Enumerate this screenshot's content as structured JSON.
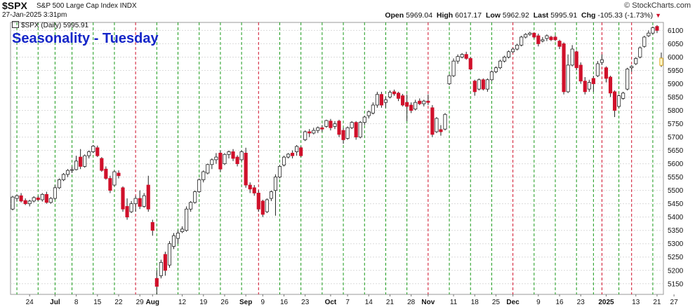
{
  "header": {
    "symbol": "$SPX",
    "description": "S&P 500 Large Cap Index  INDX",
    "date": "27-Jan-2025 3:31pm",
    "brand": "© StockCharts.com",
    "open_label": "Open",
    "open": "5969.04",
    "high_label": "High",
    "high": "6017.17",
    "low_label": "Low",
    "low": "5962.92",
    "last_label": "Last",
    "last": "5995.91",
    "chg_label": "Chg",
    "chg": "-105.33 (-1.73%)",
    "chg_arrow": "▼"
  },
  "legend": {
    "label": "$SPX (Daily) 5995.91"
  },
  "overlay_title": "Seasonality - Tuesday",
  "colors": {
    "up": "#ffffff",
    "down": "#d0102a",
    "title": "#1526c8",
    "green_line": "#1a9a1a",
    "red_line": "#d0102a"
  },
  "chart_data": {
    "type": "candlestick",
    "title": "Seasonality - Tuesday",
    "ylim": [
      5110,
      6130
    ],
    "y_ticks": [
      5150,
      5200,
      5250,
      5300,
      5350,
      5400,
      5450,
      5500,
      5550,
      5600,
      5650,
      5700,
      5750,
      5800,
      5850,
      5900,
      5950,
      6000,
      6050,
      6100
    ],
    "x_ticks": [
      {
        "label": "24",
        "i": 4
      },
      {
        "label": "Jul",
        "i": 10
      },
      {
        "label": "8",
        "i": 15
      },
      {
        "label": "15",
        "i": 20
      },
      {
        "label": "22",
        "i": 25
      },
      {
        "label": "29",
        "i": 30
      },
      {
        "label": "Aug",
        "i": 33
      },
      {
        "label": "12",
        "i": 40
      },
      {
        "label": "19",
        "i": 45
      },
      {
        "label": "26",
        "i": 50
      },
      {
        "label": "Sep",
        "i": 55
      },
      {
        "label": "9",
        "i": 59
      },
      {
        "label": "16",
        "i": 64
      },
      {
        "label": "23",
        "i": 69
      },
      {
        "label": "Oct",
        "i": 75
      },
      {
        "label": "7",
        "i": 79
      },
      {
        "label": "14",
        "i": 84
      },
      {
        "label": "21",
        "i": 89
      },
      {
        "label": "28",
        "i": 94
      },
      {
        "label": "Nov",
        "i": 98
      },
      {
        "label": "11",
        "i": 104
      },
      {
        "label": "18",
        "i": 109
      },
      {
        "label": "25",
        "i": 114
      },
      {
        "label": "Dec",
        "i": 118
      },
      {
        "label": "9",
        "i": 124
      },
      {
        "label": "16",
        "i": 129
      },
      {
        "label": "23",
        "i": 134
      },
      {
        "label": "2025",
        "i": 140
      },
      {
        "label": "13",
        "i": 147
      },
      {
        "label": "21",
        "i": 152
      },
      {
        "label": "27",
        "i": 156
      }
    ],
    "vlines_green": [
      1,
      6,
      10,
      14,
      19,
      24,
      34,
      39,
      44,
      49,
      54,
      63,
      68,
      73,
      78,
      83,
      88,
      93,
      103,
      108,
      113,
      123,
      128,
      133,
      137,
      143,
      151
    ],
    "vlines_red": [
      29,
      58,
      98,
      118,
      139,
      146
    ],
    "candles": [
      {
        "o": 5430,
        "h": 5480,
        "l": 5425,
        "c": 5475
      },
      {
        "o": 5470,
        "h": 5485,
        "l": 5460,
        "c": 5480
      },
      {
        "o": 5480,
        "h": 5490,
        "l": 5455,
        "c": 5460
      },
      {
        "o": 5462,
        "h": 5470,
        "l": 5445,
        "c": 5450
      },
      {
        "o": 5450,
        "h": 5465,
        "l": 5440,
        "c": 5460
      },
      {
        "o": 5460,
        "h": 5478,
        "l": 5455,
        "c": 5473
      },
      {
        "o": 5472,
        "h": 5480,
        "l": 5460,
        "c": 5465
      },
      {
        "o": 5465,
        "h": 5490,
        "l": 5458,
        "c": 5485
      },
      {
        "o": 5485,
        "h": 5495,
        "l": 5450,
        "c": 5455
      },
      {
        "o": 5455,
        "h": 5475,
        "l": 5450,
        "c": 5470
      },
      {
        "o": 5470,
        "h": 5520,
        "l": 5465,
        "c": 5510
      },
      {
        "o": 5510,
        "h": 5545,
        "l": 5505,
        "c": 5540
      },
      {
        "o": 5540,
        "h": 5565,
        "l": 5535,
        "c": 5560
      },
      {
        "o": 5560,
        "h": 5580,
        "l": 5550,
        "c": 5575
      },
      {
        "o": 5575,
        "h": 5590,
        "l": 5565,
        "c": 5578
      },
      {
        "o": 5578,
        "h": 5630,
        "l": 5575,
        "c": 5610
      },
      {
        "o": 5625,
        "h": 5655,
        "l": 5580,
        "c": 5590
      },
      {
        "o": 5590,
        "h": 5635,
        "l": 5585,
        "c": 5630
      },
      {
        "o": 5630,
        "h": 5650,
        "l": 5620,
        "c": 5645
      },
      {
        "o": 5645,
        "h": 5670,
        "l": 5640,
        "c": 5666
      },
      {
        "o": 5660,
        "h": 5668,
        "l": 5625,
        "c": 5630
      },
      {
        "o": 5620,
        "h": 5625,
        "l": 5570,
        "c": 5575
      },
      {
        "o": 5580,
        "h": 5590,
        "l": 5540,
        "c": 5545
      },
      {
        "o": 5545,
        "h": 5555,
        "l": 5490,
        "c": 5500
      },
      {
        "o": 5520,
        "h": 5575,
        "l": 5515,
        "c": 5570
      },
      {
        "o": 5565,
        "h": 5575,
        "l": 5545,
        "c": 5555
      },
      {
        "o": 5510,
        "h": 5515,
        "l": 5420,
        "c": 5430
      },
      {
        "o": 5440,
        "h": 5470,
        "l": 5390,
        "c": 5400
      },
      {
        "o": 5420,
        "h": 5460,
        "l": 5415,
        "c": 5450
      },
      {
        "o": 5450,
        "h": 5480,
        "l": 5420,
        "c": 5470
      },
      {
        "o": 5470,
        "h": 5500,
        "l": 5430,
        "c": 5440
      },
      {
        "o": 5440,
        "h": 5490,
        "l": 5435,
        "c": 5480
      },
      {
        "o": 5520,
        "h": 5555,
        "l": 5420,
        "c": 5430
      },
      {
        "o": 5380,
        "h": 5390,
        "l": 5330,
        "c": 5350
      },
      {
        "o": 5170,
        "h": 5200,
        "l": 5110,
        "c": 5140
      },
      {
        "o": 5180,
        "h": 5240,
        "l": 5170,
        "c": 5230
      },
      {
        "o": 5260,
        "h": 5270,
        "l": 5180,
        "c": 5200
      },
      {
        "o": 5220,
        "h": 5310,
        "l": 5210,
        "c": 5300
      },
      {
        "o": 5290,
        "h": 5340,
        "l": 5280,
        "c": 5330
      },
      {
        "o": 5320,
        "h": 5350,
        "l": 5300,
        "c": 5340
      },
      {
        "o": 5345,
        "h": 5365,
        "l": 5340,
        "c": 5355
      },
      {
        "o": 5350,
        "h": 5440,
        "l": 5345,
        "c": 5430
      },
      {
        "o": 5430,
        "h": 5460,
        "l": 5420,
        "c": 5455
      },
      {
        "o": 5455,
        "h": 5500,
        "l": 5450,
        "c": 5495
      },
      {
        "o": 5495,
        "h": 5545,
        "l": 5490,
        "c": 5540
      },
      {
        "o": 5540,
        "h": 5575,
        "l": 5530,
        "c": 5570
      },
      {
        "o": 5565,
        "h": 5600,
        "l": 5560,
        "c": 5597
      },
      {
        "o": 5597,
        "h": 5620,
        "l": 5580,
        "c": 5615
      },
      {
        "o": 5615,
        "h": 5640,
        "l": 5600,
        "c": 5625
      },
      {
        "o": 5640,
        "h": 5650,
        "l": 5570,
        "c": 5580
      },
      {
        "o": 5600,
        "h": 5640,
        "l": 5595,
        "c": 5635
      },
      {
        "o": 5635,
        "h": 5650,
        "l": 5620,
        "c": 5645
      },
      {
        "o": 5645,
        "h": 5655,
        "l": 5610,
        "c": 5620
      },
      {
        "o": 5625,
        "h": 5632,
        "l": 5590,
        "c": 5600
      },
      {
        "o": 5615,
        "h": 5650,
        "l": 5610,
        "c": 5645
      },
      {
        "o": 5640,
        "h": 5660,
        "l": 5510,
        "c": 5520
      },
      {
        "o": 5520,
        "h": 5530,
        "l": 5490,
        "c": 5505
      },
      {
        "o": 5510,
        "h": 5520,
        "l": 5480,
        "c": 5490
      },
      {
        "o": 5490,
        "h": 5500,
        "l": 5420,
        "c": 5430
      },
      {
        "o": 5460,
        "h": 5465,
        "l": 5400,
        "c": 5410
      },
      {
        "o": 5420,
        "h": 5470,
        "l": 5415,
        "c": 5465
      },
      {
        "o": 5470,
        "h": 5500,
        "l": 5460,
        "c": 5495
      },
      {
        "o": 5500,
        "h": 5560,
        "l": 5405,
        "c": 5550
      },
      {
        "o": 5550,
        "h": 5595,
        "l": 5545,
        "c": 5590
      },
      {
        "o": 5595,
        "h": 5630,
        "l": 5590,
        "c": 5625
      },
      {
        "o": 5625,
        "h": 5640,
        "l": 5620,
        "c": 5636
      },
      {
        "o": 5640,
        "h": 5650,
        "l": 5620,
        "c": 5630
      },
      {
        "o": 5645,
        "h": 5670,
        "l": 5630,
        "c": 5665
      },
      {
        "o": 5660,
        "h": 5665,
        "l": 5625,
        "c": 5630
      },
      {
        "o": 5690,
        "h": 5725,
        "l": 5685,
        "c": 5720
      },
      {
        "o": 5720,
        "h": 5730,
        "l": 5700,
        "c": 5715
      },
      {
        "o": 5715,
        "h": 5735,
        "l": 5710,
        "c": 5725
      },
      {
        "o": 5725,
        "h": 5740,
        "l": 5715,
        "c": 5735
      },
      {
        "o": 5735,
        "h": 5745,
        "l": 5720,
        "c": 5730
      },
      {
        "o": 5740,
        "h": 5765,
        "l": 5735,
        "c": 5762
      },
      {
        "o": 5760,
        "h": 5768,
        "l": 5725,
        "c": 5735
      },
      {
        "o": 5740,
        "h": 5760,
        "l": 5730,
        "c": 5750
      },
      {
        "o": 5760,
        "h": 5765,
        "l": 5700,
        "c": 5710
      },
      {
        "o": 5725,
        "h": 5735,
        "l": 5675,
        "c": 5690
      },
      {
        "o": 5695,
        "h": 5740,
        "l": 5690,
        "c": 5735
      },
      {
        "o": 5735,
        "h": 5760,
        "l": 5730,
        "c": 5755
      },
      {
        "o": 5755,
        "h": 5760,
        "l": 5690,
        "c": 5700
      },
      {
        "o": 5700,
        "h": 5760,
        "l": 5695,
        "c": 5755
      },
      {
        "o": 5755,
        "h": 5780,
        "l": 5745,
        "c": 5775
      },
      {
        "o": 5780,
        "h": 5800,
        "l": 5770,
        "c": 5795
      },
      {
        "o": 5790,
        "h": 5830,
        "l": 5785,
        "c": 5820
      },
      {
        "o": 5820,
        "h": 5870,
        "l": 5810,
        "c": 5860
      },
      {
        "o": 5860,
        "h": 5870,
        "l": 5810,
        "c": 5820
      },
      {
        "o": 5830,
        "h": 5850,
        "l": 5810,
        "c": 5840
      },
      {
        "o": 5850,
        "h": 5875,
        "l": 5845,
        "c": 5868
      },
      {
        "o": 5870,
        "h": 5878,
        "l": 5855,
        "c": 5862
      },
      {
        "o": 5865,
        "h": 5870,
        "l": 5835,
        "c": 5845
      },
      {
        "o": 5855,
        "h": 5862,
        "l": 5815,
        "c": 5820
      },
      {
        "o": 5830,
        "h": 5860,
        "l": 5760,
        "c": 5815
      },
      {
        "o": 5820,
        "h": 5830,
        "l": 5790,
        "c": 5800
      },
      {
        "o": 5805,
        "h": 5840,
        "l": 5800,
        "c": 5830
      },
      {
        "o": 5835,
        "h": 5845,
        "l": 5820,
        "c": 5825
      },
      {
        "o": 5825,
        "h": 5840,
        "l": 5815,
        "c": 5835
      },
      {
        "o": 5835,
        "h": 5860,
        "l": 5820,
        "c": 5830
      },
      {
        "o": 5810,
        "h": 5820,
        "l": 5700,
        "c": 5710
      },
      {
        "o": 5720,
        "h": 5775,
        "l": 5715,
        "c": 5770
      },
      {
        "o": 5728,
        "h": 5745,
        "l": 5705,
        "c": 5720
      },
      {
        "o": 5730,
        "h": 5790,
        "l": 5725,
        "c": 5785
      },
      {
        "o": 5900,
        "h": 5935,
        "l": 5895,
        "c": 5930
      },
      {
        "o": 5930,
        "h": 5995,
        "l": 5925,
        "c": 5985
      },
      {
        "o": 5985,
        "h": 6010,
        "l": 5975,
        "c": 6002
      },
      {
        "o": 6000,
        "h": 6015,
        "l": 5995,
        "c": 6010
      },
      {
        "o": 6010,
        "h": 6020,
        "l": 5990,
        "c": 5995
      },
      {
        "o": 5995,
        "h": 6000,
        "l": 5950,
        "c": 5955
      },
      {
        "o": 5910,
        "h": 5915,
        "l": 5855,
        "c": 5870
      },
      {
        "o": 5880,
        "h": 5920,
        "l": 5875,
        "c": 5915
      },
      {
        "o": 5915,
        "h": 5920,
        "l": 5875,
        "c": 5880
      },
      {
        "o": 5880,
        "h": 5920,
        "l": 5870,
        "c": 5915
      },
      {
        "o": 5915,
        "h": 5950,
        "l": 5910,
        "c": 5945
      },
      {
        "o": 5945,
        "h": 5965,
        "l": 5940,
        "c": 5960
      },
      {
        "o": 5960,
        "h": 5990,
        "l": 5955,
        "c": 5985
      },
      {
        "o": 5985,
        "h": 6005,
        "l": 5980,
        "c": 6000
      },
      {
        "o": 6000,
        "h": 6025,
        "l": 5995,
        "c": 6020
      },
      {
        "o": 6020,
        "h": 6035,
        "l": 6015,
        "c": 6030
      },
      {
        "o": 6030,
        "h": 6050,
        "l": 6025,
        "c": 6045
      },
      {
        "o": 6045,
        "h": 6080,
        "l": 6040,
        "c": 6075
      },
      {
        "o": 6075,
        "h": 6090,
        "l": 6070,
        "c": 6085
      },
      {
        "o": 6085,
        "h": 6095,
        "l": 6080,
        "c": 6090
      },
      {
        "o": 6090,
        "h": 6092,
        "l": 6070,
        "c": 6075
      },
      {
        "o": 6080,
        "h": 6088,
        "l": 6040,
        "c": 6050
      },
      {
        "o": 6060,
        "h": 6075,
        "l": 6055,
        "c": 6065
      },
      {
        "o": 6070,
        "h": 6085,
        "l": 6060,
        "c": 6080
      },
      {
        "o": 6075,
        "h": 6080,
        "l": 6060,
        "c": 6065
      },
      {
        "o": 6075,
        "h": 6082,
        "l": 6060,
        "c": 6065
      },
      {
        "o": 6060,
        "h": 6065,
        "l": 6030,
        "c": 6040
      },
      {
        "o": 6050,
        "h": 6055,
        "l": 5860,
        "c": 5870
      },
      {
        "o": 5870,
        "h": 6010,
        "l": 5865,
        "c": 5970
      },
      {
        "o": 5970,
        "h": 6045,
        "l": 5965,
        "c": 6030
      },
      {
        "o": 6020,
        "h": 6025,
        "l": 5950,
        "c": 5960
      },
      {
        "o": 5970,
        "h": 5980,
        "l": 5900,
        "c": 5910
      },
      {
        "o": 5910,
        "h": 5925,
        "l": 5860,
        "c": 5870
      },
      {
        "o": 5880,
        "h": 5915,
        "l": 5870,
        "c": 5905
      },
      {
        "o": 5920,
        "h": 5930,
        "l": 5870,
        "c": 5900
      },
      {
        "o": 5930,
        "h": 5985,
        "l": 5925,
        "c": 5975
      },
      {
        "o": 5980,
        "h": 6010,
        "l": 5970,
        "c": 5990
      },
      {
        "o": 5960,
        "h": 5965,
        "l": 5905,
        "c": 5920
      },
      {
        "o": 5925,
        "h": 5930,
        "l": 5850,
        "c": 5865
      },
      {
        "o": 5870,
        "h": 5875,
        "l": 5775,
        "c": 5800
      },
      {
        "o": 5815,
        "h": 5860,
        "l": 5810,
        "c": 5855
      },
      {
        "o": 5845,
        "h": 5870,
        "l": 5840,
        "c": 5865
      },
      {
        "o": 5880,
        "h": 5960,
        "l": 5875,
        "c": 5955
      },
      {
        "o": 5960,
        "h": 5970,
        "l": 5945,
        "c": 5965
      },
      {
        "o": 5975,
        "h": 6000,
        "l": 5970,
        "c": 5995
      },
      {
        "o": 6000,
        "h": 6040,
        "l": 5995,
        "c": 6035
      },
      {
        "o": 6040,
        "h": 6080,
        "l": 6035,
        "c": 6075
      },
      {
        "o": 6080,
        "h": 6100,
        "l": 6075,
        "c": 6090
      },
      {
        "o": 6090,
        "h": 6115,
        "l": 6085,
        "c": 6110
      },
      {
        "o": 6115,
        "h": 6120,
        "l": 6090,
        "c": 6100
      },
      {
        "o": 5969.04,
        "h": 6017.17,
        "l": 5962.92,
        "c": 5995.91,
        "current": true
      }
    ]
  }
}
